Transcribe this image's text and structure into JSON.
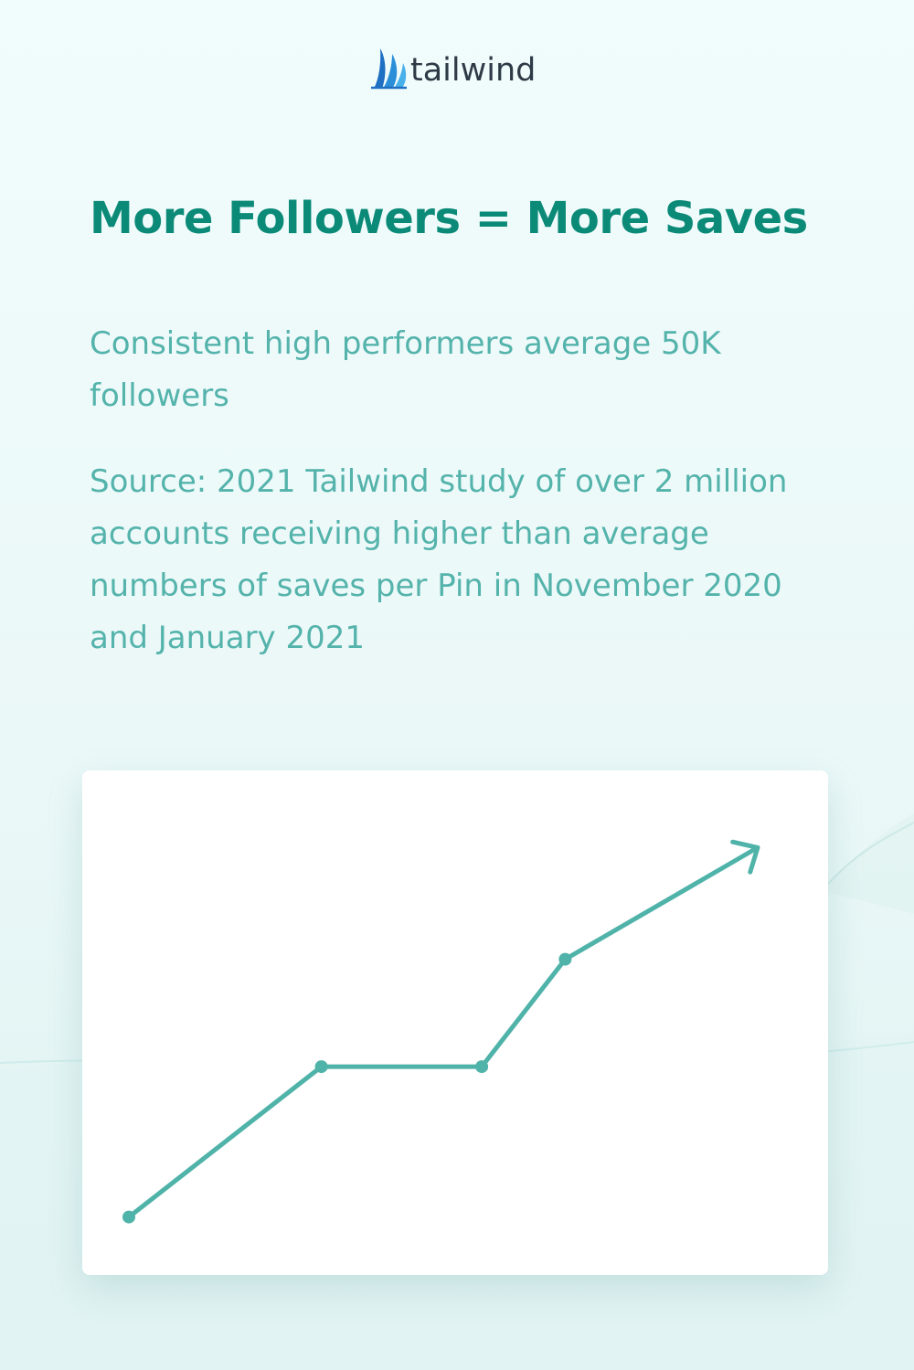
{
  "brand": {
    "name": "tailwind",
    "logo_icon": "sail-logo-icon",
    "logo_color": "#2a8fd8",
    "text_color": "#2e3a46"
  },
  "colors": {
    "title": "#0b8a78",
    "body_text": "#54b3ab",
    "line": "#4fb3a9"
  },
  "title": "More Followers = More Saves",
  "subtitle": "Consistent high performers average 50K followers",
  "source": "Source: 2021 Tailwind study of over 2 million accounts receiving higher than average numbers of saves per Pin in November 2020 and January 2021",
  "chart_data": {
    "type": "line",
    "title": "",
    "xlabel": "",
    "ylabel": "",
    "grid": false,
    "legend": "none",
    "end_marker": "arrow",
    "xlim": [
      0,
      10
    ],
    "ylim": [
      0,
      10
    ],
    "series": [
      {
        "color": "#4fb3a9",
        "points": [
          {
            "x": 0.0,
            "y": 1.2
          },
          {
            "x": 3.0,
            "y": 4.7
          },
          {
            "x": 5.5,
            "y": 4.7
          },
          {
            "x": 6.8,
            "y": 7.2
          },
          {
            "x": 9.8,
            "y": 9.8
          }
        ]
      }
    ]
  }
}
